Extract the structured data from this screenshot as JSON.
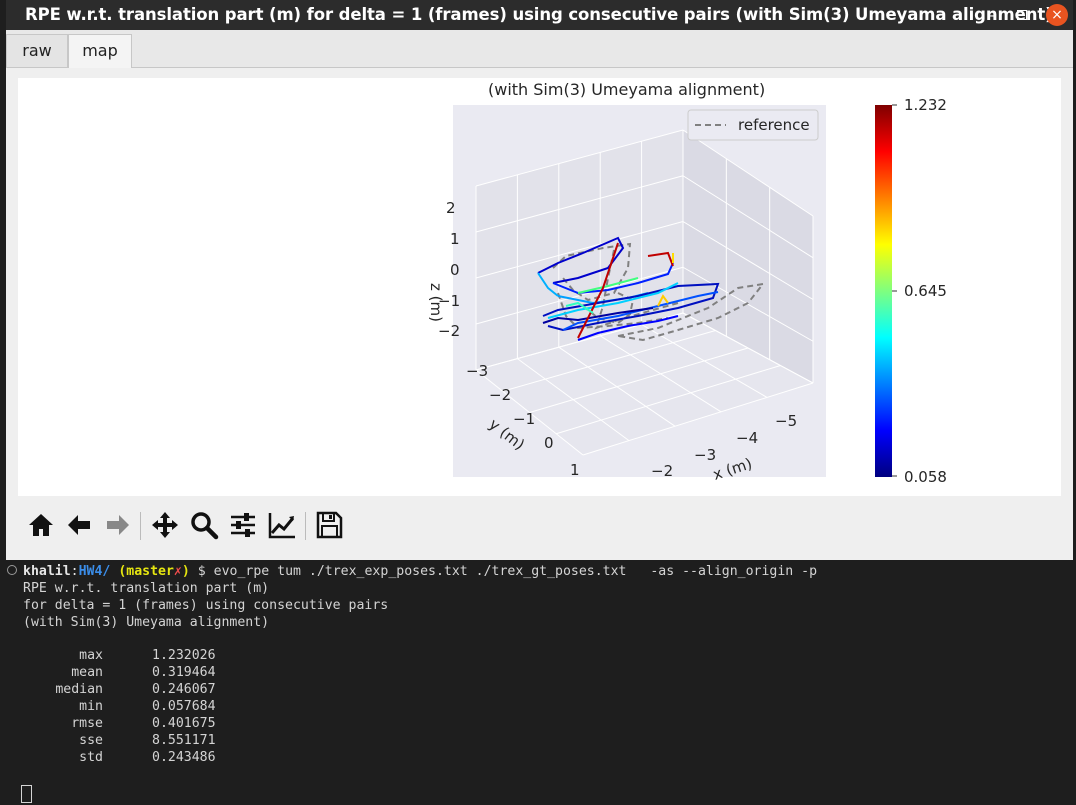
{
  "window": {
    "title": "RPE w.r.t. translation part (m) for delta = 1 (frames) using consecutive pairs (with Sim(3) Umeyama alignment)",
    "minimize": "–",
    "close": "×"
  },
  "tabs": [
    {
      "label": "raw"
    },
    {
      "label": "map"
    }
  ],
  "plot": {
    "title": "(with Sim(3) Umeyama alignment)",
    "legend_label": "reference",
    "z_label": "z (m)",
    "y_label": "y (m)",
    "x_label": "x (m)",
    "z_ticks": [
      "2",
      "1",
      "0",
      "−1",
      "−2"
    ],
    "y_ticks": [
      "−3",
      "−2",
      "−1",
      "0",
      "1"
    ],
    "x_ticks": [
      "−5",
      "−4",
      "−3",
      "−2"
    ],
    "colorbar_ticks": [
      "1.232",
      "0.645",
      "0.058"
    ]
  },
  "chart_data": {
    "type": "line",
    "title": "(with Sim(3) Umeyama alignment)",
    "xlabel": "x (m)",
    "ylabel": "y (m)",
    "zlabel": "z (m)",
    "series": [
      {
        "name": "reference",
        "style": "dashed",
        "color": "#808080"
      }
    ],
    "colorbar": {
      "min": 0.058,
      "mid": 0.645,
      "max": 1.232,
      "colormap": "jet"
    },
    "grid": true,
    "legend": "top-right"
  },
  "toolbar": {
    "icons": [
      "home-icon",
      "back-icon",
      "forward-icon",
      "pan-icon",
      "zoom-icon",
      "configure-icon",
      "edit-axis-icon",
      "save-icon"
    ]
  },
  "terminal": {
    "user": "khalil",
    "sep": ":",
    "dir": "HW4/",
    "branch_open": "(",
    "branch": "master",
    "dirty": "✗",
    "branch_close": ")",
    "command": "$ evo_rpe tum ./trex_exp_poses.txt ./trex_gt_poses.txt   -as --align_origin -p",
    "lines": [
      "RPE w.r.t. translation part (m)",
      "for delta = 1 (frames) using consecutive pairs",
      "(with Sim(3) Umeyama alignment)"
    ],
    "stats": [
      {
        "name": "max",
        "value": "1.232026"
      },
      {
        "name": "mean",
        "value": "0.319464"
      },
      {
        "name": "median",
        "value": "0.246067"
      },
      {
        "name": "min",
        "value": "0.057684"
      },
      {
        "name": "rmse",
        "value": "0.401675"
      },
      {
        "name": "sse",
        "value": "8.551171"
      },
      {
        "name": "std",
        "value": "0.243486"
      }
    ]
  }
}
